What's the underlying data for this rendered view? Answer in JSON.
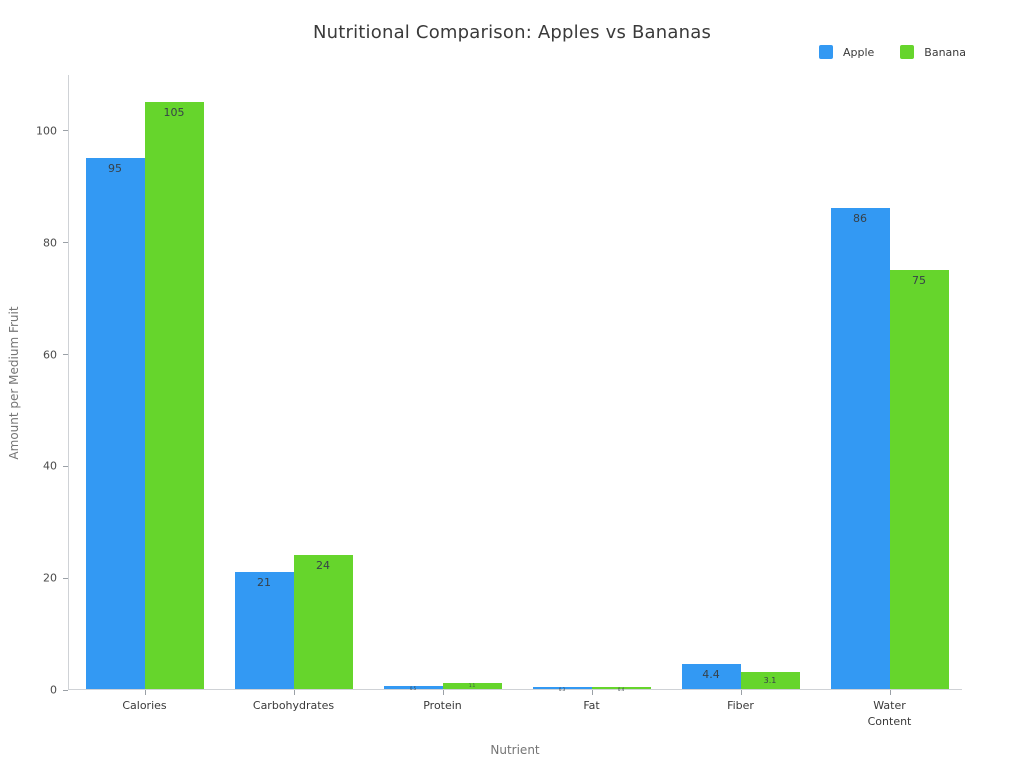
{
  "chart_data": {
    "type": "bar",
    "title": "Nutritional Comparison: Apples vs Bananas",
    "xlabel": "Nutrient",
    "ylabel": "Amount per Medium Fruit",
    "categories": [
      "Calories",
      "Carbohydrates",
      "Protein",
      "Fat",
      "Fiber",
      "Water Content"
    ],
    "series": [
      {
        "name": "Apple",
        "color": "#3399f3",
        "values": [
          95,
          21,
          0.5,
          0.3,
          4.4,
          86
        ]
      },
      {
        "name": "Banana",
        "color": "#66d52c",
        "values": [
          105,
          24,
          1.1,
          0.4,
          3.1,
          75
        ]
      }
    ],
    "ylim": [
      0,
      110
    ],
    "yticks": [
      0,
      20,
      40,
      60,
      80,
      100
    ],
    "grid": false,
    "legend_position": "top-right",
    "value_labels_shown": true,
    "colors": {
      "background": "#ffffff",
      "title_text": "#3a3a3a",
      "axis_title_text": "#757575",
      "tick_label_text": "#4a4a4a",
      "axis_line": "#cfd2d6",
      "value_label_text": "#374149"
    }
  }
}
